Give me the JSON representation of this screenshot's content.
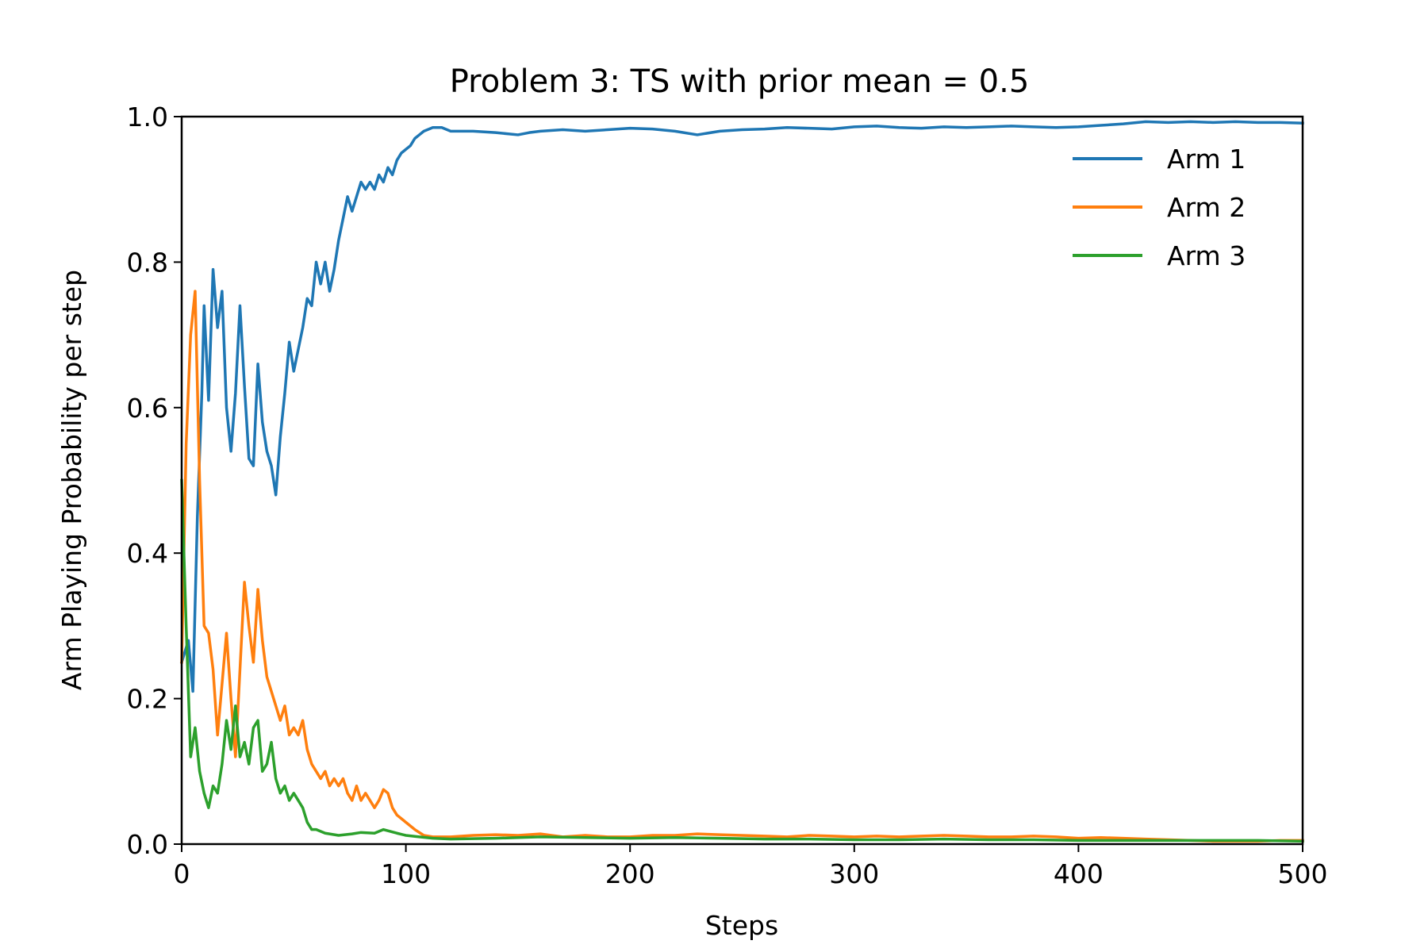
{
  "chart_data": {
    "type": "line",
    "title": "Problem 3: TS with prior mean = 0.5",
    "xlabel": "Steps",
    "ylabel": "Arm Playing Probability per step",
    "xlim": [
      0,
      500
    ],
    "ylim": [
      0.0,
      1.0
    ],
    "xticks": [
      0,
      100,
      200,
      300,
      400,
      500
    ],
    "xtick_labels": [
      "0",
      "100",
      "200",
      "300",
      "400",
      "500"
    ],
    "yticks": [
      0.0,
      0.2,
      0.4,
      0.6,
      0.8,
      1.0
    ],
    "ytick_labels": [
      "0.0",
      "0.2",
      "0.4",
      "0.6",
      "0.8",
      "1.0"
    ],
    "grid": false,
    "legend_position": "top-right",
    "series": [
      {
        "name": "Arm 1",
        "color": "#1f77b4",
        "points": [
          [
            0,
            0.25
          ],
          [
            3,
            0.28
          ],
          [
            5,
            0.21
          ],
          [
            7,
            0.45
          ],
          [
            9,
            0.62
          ],
          [
            10,
            0.74
          ],
          [
            12,
            0.61
          ],
          [
            14,
            0.79
          ],
          [
            16,
            0.71
          ],
          [
            18,
            0.76
          ],
          [
            20,
            0.6
          ],
          [
            22,
            0.54
          ],
          [
            24,
            0.62
          ],
          [
            26,
            0.74
          ],
          [
            28,
            0.63
          ],
          [
            30,
            0.53
          ],
          [
            32,
            0.52
          ],
          [
            34,
            0.66
          ],
          [
            36,
            0.58
          ],
          [
            38,
            0.54
          ],
          [
            40,
            0.52
          ],
          [
            42,
            0.48
          ],
          [
            44,
            0.56
          ],
          [
            46,
            0.62
          ],
          [
            48,
            0.69
          ],
          [
            50,
            0.65
          ],
          [
            52,
            0.68
          ],
          [
            54,
            0.71
          ],
          [
            56,
            0.75
          ],
          [
            58,
            0.74
          ],
          [
            60,
            0.8
          ],
          [
            62,
            0.77
          ],
          [
            64,
            0.8
          ],
          [
            66,
            0.76
          ],
          [
            68,
            0.79
          ],
          [
            70,
            0.83
          ],
          [
            72,
            0.86
          ],
          [
            74,
            0.89
          ],
          [
            76,
            0.87
          ],
          [
            78,
            0.89
          ],
          [
            80,
            0.91
          ],
          [
            82,
            0.9
          ],
          [
            84,
            0.91
          ],
          [
            86,
            0.9
          ],
          [
            88,
            0.92
          ],
          [
            90,
            0.91
          ],
          [
            92,
            0.93
          ],
          [
            94,
            0.92
          ],
          [
            96,
            0.94
          ],
          [
            98,
            0.95
          ],
          [
            100,
            0.955
          ],
          [
            102,
            0.96
          ],
          [
            104,
            0.97
          ],
          [
            106,
            0.975
          ],
          [
            108,
            0.98
          ],
          [
            112,
            0.985
          ],
          [
            116,
            0.985
          ],
          [
            120,
            0.98
          ],
          [
            130,
            0.98
          ],
          [
            140,
            0.978
          ],
          [
            150,
            0.975
          ],
          [
            155,
            0.978
          ],
          [
            160,
            0.98
          ],
          [
            170,
            0.982
          ],
          [
            180,
            0.98
          ],
          [
            190,
            0.982
          ],
          [
            200,
            0.984
          ],
          [
            210,
            0.983
          ],
          [
            220,
            0.98
          ],
          [
            230,
            0.975
          ],
          [
            240,
            0.98
          ],
          [
            250,
            0.982
          ],
          [
            260,
            0.983
          ],
          [
            270,
            0.985
          ],
          [
            280,
            0.984
          ],
          [
            290,
            0.983
          ],
          [
            300,
            0.986
          ],
          [
            310,
            0.987
          ],
          [
            320,
            0.985
          ],
          [
            330,
            0.984
          ],
          [
            340,
            0.986
          ],
          [
            350,
            0.985
          ],
          [
            360,
            0.986
          ],
          [
            370,
            0.987
          ],
          [
            380,
            0.986
          ],
          [
            390,
            0.985
          ],
          [
            400,
            0.986
          ],
          [
            410,
            0.988
          ],
          [
            420,
            0.99
          ],
          [
            430,
            0.993
          ],
          [
            440,
            0.992
          ],
          [
            450,
            0.993
          ],
          [
            460,
            0.992
          ],
          [
            470,
            0.993
          ],
          [
            480,
            0.992
          ],
          [
            490,
            0.992
          ],
          [
            500,
            0.991
          ]
        ]
      },
      {
        "name": "Arm 2",
        "color": "#ff7f0e",
        "points": [
          [
            0,
            0.25
          ],
          [
            2,
            0.55
          ],
          [
            4,
            0.7
          ],
          [
            6,
            0.76
          ],
          [
            8,
            0.5
          ],
          [
            10,
            0.3
          ],
          [
            12,
            0.29
          ],
          [
            14,
            0.24
          ],
          [
            16,
            0.15
          ],
          [
            18,
            0.22
          ],
          [
            20,
            0.29
          ],
          [
            22,
            0.2
          ],
          [
            24,
            0.12
          ],
          [
            26,
            0.24
          ],
          [
            28,
            0.36
          ],
          [
            30,
            0.3
          ],
          [
            32,
            0.25
          ],
          [
            34,
            0.35
          ],
          [
            36,
            0.28
          ],
          [
            38,
            0.23
          ],
          [
            40,
            0.21
          ],
          [
            42,
            0.19
          ],
          [
            44,
            0.17
          ],
          [
            46,
            0.19
          ],
          [
            48,
            0.15
          ],
          [
            50,
            0.16
          ],
          [
            52,
            0.15
          ],
          [
            54,
            0.17
          ],
          [
            56,
            0.13
          ],
          [
            58,
            0.11
          ],
          [
            60,
            0.1
          ],
          [
            62,
            0.09
          ],
          [
            64,
            0.1
          ],
          [
            66,
            0.08
          ],
          [
            68,
            0.09
          ],
          [
            70,
            0.08
          ],
          [
            72,
            0.09
          ],
          [
            74,
            0.07
          ],
          [
            76,
            0.06
          ],
          [
            78,
            0.08
          ],
          [
            80,
            0.06
          ],
          [
            82,
            0.07
          ],
          [
            84,
            0.06
          ],
          [
            86,
            0.05
          ],
          [
            88,
            0.06
          ],
          [
            90,
            0.075
          ],
          [
            92,
            0.07
          ],
          [
            94,
            0.05
          ],
          [
            96,
            0.04
          ],
          [
            98,
            0.035
          ],
          [
            100,
            0.03
          ],
          [
            104,
            0.02
          ],
          [
            108,
            0.012
          ],
          [
            112,
            0.01
          ],
          [
            120,
            0.01
          ],
          [
            130,
            0.012
          ],
          [
            140,
            0.013
          ],
          [
            150,
            0.012
          ],
          [
            160,
            0.014
          ],
          [
            170,
            0.01
          ],
          [
            180,
            0.012
          ],
          [
            190,
            0.01
          ],
          [
            200,
            0.01
          ],
          [
            210,
            0.012
          ],
          [
            220,
            0.012
          ],
          [
            230,
            0.014
          ],
          [
            240,
            0.013
          ],
          [
            250,
            0.012
          ],
          [
            260,
            0.011
          ],
          [
            270,
            0.01
          ],
          [
            280,
            0.012
          ],
          [
            290,
            0.011
          ],
          [
            300,
            0.01
          ],
          [
            310,
            0.011
          ],
          [
            320,
            0.01
          ],
          [
            330,
            0.011
          ],
          [
            340,
            0.012
          ],
          [
            350,
            0.011
          ],
          [
            360,
            0.01
          ],
          [
            370,
            0.01
          ],
          [
            380,
            0.011
          ],
          [
            390,
            0.01
          ],
          [
            400,
            0.008
          ],
          [
            410,
            0.009
          ],
          [
            420,
            0.008
          ],
          [
            430,
            0.007
          ],
          [
            440,
            0.006
          ],
          [
            450,
            0.005
          ],
          [
            460,
            0.004
          ],
          [
            470,
            0.004
          ],
          [
            480,
            0.004
          ],
          [
            490,
            0.005
          ],
          [
            500,
            0.005
          ]
        ]
      },
      {
        "name": "Arm 3",
        "color": "#2ca02c",
        "points": [
          [
            0,
            0.5
          ],
          [
            2,
            0.3
          ],
          [
            4,
            0.12
          ],
          [
            6,
            0.16
          ],
          [
            8,
            0.1
          ],
          [
            10,
            0.07
          ],
          [
            12,
            0.05
          ],
          [
            14,
            0.08
          ],
          [
            16,
            0.07
          ],
          [
            18,
            0.11
          ],
          [
            20,
            0.17
          ],
          [
            22,
            0.13
          ],
          [
            24,
            0.19
          ],
          [
            26,
            0.12
          ],
          [
            28,
            0.14
          ],
          [
            30,
            0.11
          ],
          [
            32,
            0.16
          ],
          [
            34,
            0.17
          ],
          [
            36,
            0.1
          ],
          [
            38,
            0.11
          ],
          [
            40,
            0.14
          ],
          [
            42,
            0.09
          ],
          [
            44,
            0.07
          ],
          [
            46,
            0.08
          ],
          [
            48,
            0.06
          ],
          [
            50,
            0.07
          ],
          [
            52,
            0.06
          ],
          [
            54,
            0.05
          ],
          [
            56,
            0.03
          ],
          [
            58,
            0.02
          ],
          [
            60,
            0.02
          ],
          [
            64,
            0.015
          ],
          [
            70,
            0.012
          ],
          [
            76,
            0.014
          ],
          [
            80,
            0.016
          ],
          [
            86,
            0.015
          ],
          [
            90,
            0.02
          ],
          [
            96,
            0.015
          ],
          [
            100,
            0.012
          ],
          [
            106,
            0.01
          ],
          [
            112,
            0.008
          ],
          [
            120,
            0.007
          ],
          [
            140,
            0.008
          ],
          [
            160,
            0.01
          ],
          [
            180,
            0.009
          ],
          [
            200,
            0.008
          ],
          [
            220,
            0.009
          ],
          [
            240,
            0.008
          ],
          [
            260,
            0.007
          ],
          [
            280,
            0.007
          ],
          [
            300,
            0.006
          ],
          [
            320,
            0.006
          ],
          [
            340,
            0.007
          ],
          [
            360,
            0.006
          ],
          [
            380,
            0.006
          ],
          [
            400,
            0.005
          ],
          [
            420,
            0.005
          ],
          [
            440,
            0.005
          ],
          [
            460,
            0.005
          ],
          [
            480,
            0.005
          ],
          [
            500,
            0.004
          ]
        ]
      }
    ]
  }
}
